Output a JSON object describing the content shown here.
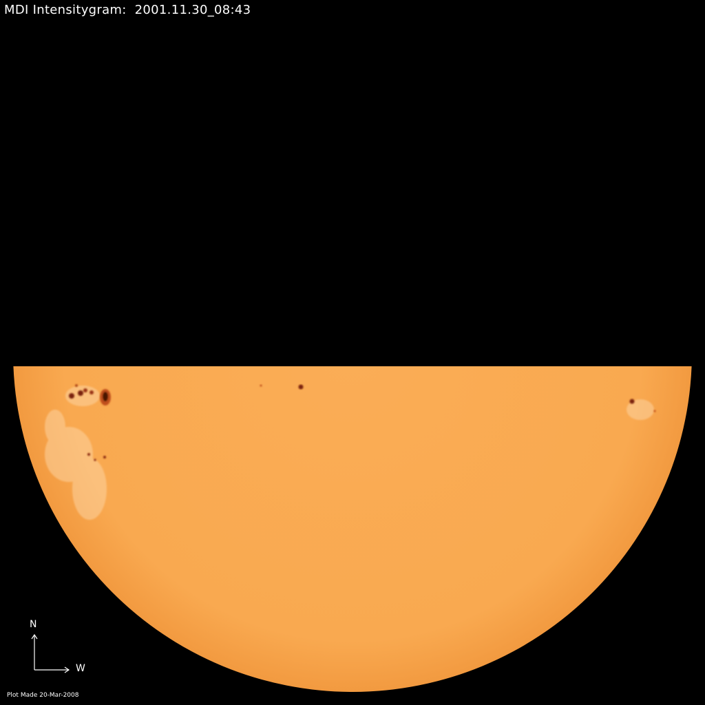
{
  "title": "MDI Intensitygram:  2001.11.30_08:43",
  "footer": "Plot Made 20-Mar-2008",
  "compass": {
    "north_label": "N",
    "west_label": "W"
  },
  "colors": {
    "background": "#000000",
    "disk": "#f9aa52",
    "umbra": "#5a1a08",
    "penumbra": "#c0501c",
    "facula": "#fdd7a4"
  }
}
